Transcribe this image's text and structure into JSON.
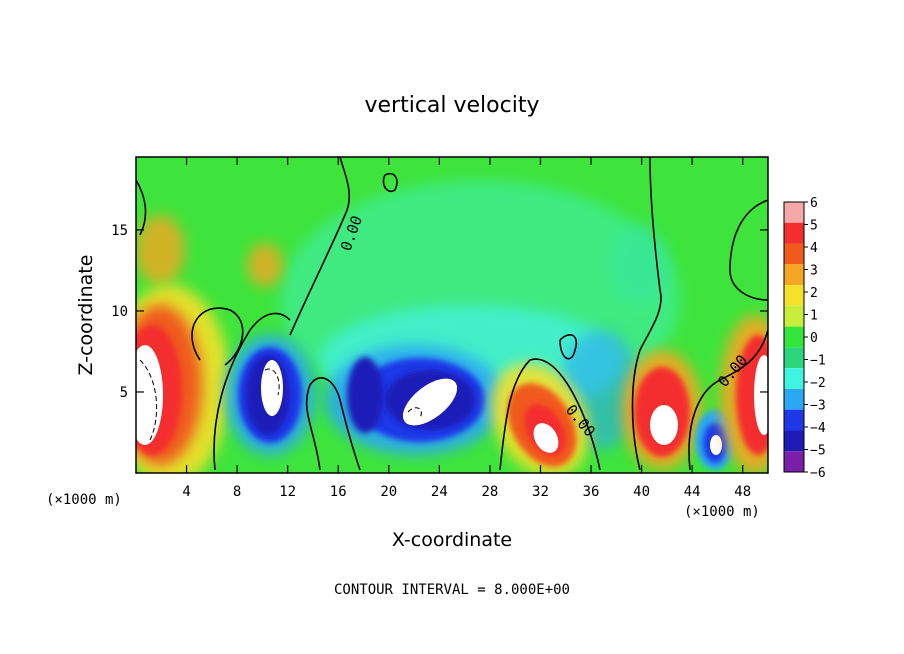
{
  "chart_data": {
    "type": "heatmap",
    "title": "vertical velocity",
    "xlabel": "X-coordinate",
    "ylabel": "Z-coordinate",
    "x_unit_label": "(×1000 m)",
    "x_unit_label_right": "(×1000 m)",
    "footer": "CONTOUR INTERVAL = 8.000E+00",
    "contour_label": "0.00",
    "xlim": [
      0,
      50
    ],
    "ylim": [
      0,
      19.5
    ],
    "x_ticks": [
      4,
      8,
      12,
      16,
      20,
      24,
      28,
      32,
      36,
      40,
      44,
      48
    ],
    "y_ticks": [
      5,
      10,
      15
    ],
    "colorbar": {
      "levels": [
        6,
        5,
        4,
        3,
        2,
        1,
        0,
        -1,
        -2,
        -3,
        -4,
        -5,
        -6
      ],
      "colors": [
        "#f6a7a7",
        "#f42e2e",
        "#f05a1a",
        "#f5a623",
        "#f5e12a",
        "#c7ee3a",
        "#35e63a",
        "#2bd77c",
        "#3ff5e0",
        "#2aa8f2",
        "#1e38e8",
        "#1d1ab8",
        "#7a1fa8"
      ]
    },
    "features": [
      {
        "kind": "updraft",
        "x": 0.8,
        "z": 5.5,
        "w": 8
      },
      {
        "kind": "updraft",
        "x": 32,
        "z": 2.5,
        "w": 7
      },
      {
        "kind": "updraft",
        "x": 41.5,
        "z": 3.5,
        "w": 7
      },
      {
        "kind": "updraft",
        "x": 49.3,
        "z": 5.5,
        "w": 8
      },
      {
        "kind": "downdraft",
        "x": 11,
        "z": 5,
        "w": -8
      },
      {
        "kind": "downdraft",
        "x": 18.5,
        "z": 4.5,
        "w": -6
      },
      {
        "kind": "downdraft",
        "x": 23.5,
        "z": 4.5,
        "w": -8
      },
      {
        "kind": "downdraft",
        "x": 46,
        "z": 2,
        "w": -6
      }
    ]
  }
}
